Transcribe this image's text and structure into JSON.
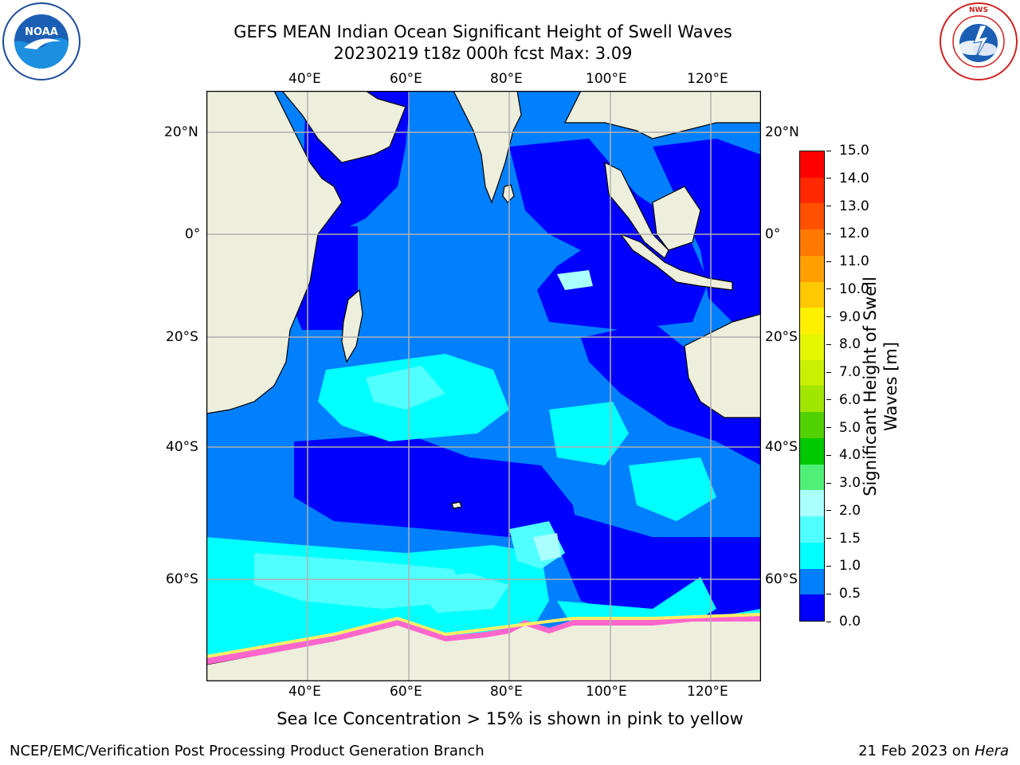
{
  "title": {
    "line1": "GEFS MEAN Indian Ocean Significant Height of Swell Waves",
    "line2": "20230219 t18z 000h fcst   Max: 3.09"
  },
  "map": {
    "lon_labels": [
      "40°E",
      "60°E",
      "80°E",
      "100°E",
      "120°E"
    ],
    "lat_labels_left": [
      "20°N",
      "0°",
      "20°S",
      "40°S",
      "60°S"
    ],
    "lat_labels_right": [
      "20°N",
      "0°",
      "20°S",
      "40°S",
      "60°S"
    ],
    "land_color": "#eeeedd",
    "ice_note": "Sea Ice Concentration > 15% is shown in pink to yellow"
  },
  "colorbar": {
    "label_line1": "Significant Height of Swell",
    "label_line2": "Waves [m]",
    "ticks": [
      "15.0",
      "14.0",
      "13.0",
      "12.0",
      "11.0",
      "10.0",
      "9.0",
      "8.0",
      "7.0",
      "6.0",
      "5.0",
      "4.0",
      "3.0",
      "2.0",
      "1.5",
      "1.0",
      "0.5",
      "0.0"
    ],
    "colors_top_to_bottom": [
      "#ff0000",
      "#ff2800",
      "#ff5000",
      "#ff7800",
      "#ffa000",
      "#ffc800",
      "#fff000",
      "#e6f500",
      "#c8f000",
      "#a0e600",
      "#50d200",
      "#00c800",
      "#50f078",
      "#aaffff",
      "#50ffff",
      "#00ffff",
      "#0080ff",
      "#0000ff"
    ]
  },
  "logos": {
    "noaa_text": "NOAA",
    "noaa_ring": "NATIONAL OCEANIC AND ATMOSPHERIC ADMINISTRATION · U.S. DEPARTMENT OF COMMERCE",
    "nws_ring": "NATIONAL WEATHER SERVICE"
  },
  "footer": {
    "left": "NCEP/EMC/Verification Post Processing Product Generation Branch",
    "right_date": "21 Feb 2023 on ",
    "right_host": "Hera"
  }
}
